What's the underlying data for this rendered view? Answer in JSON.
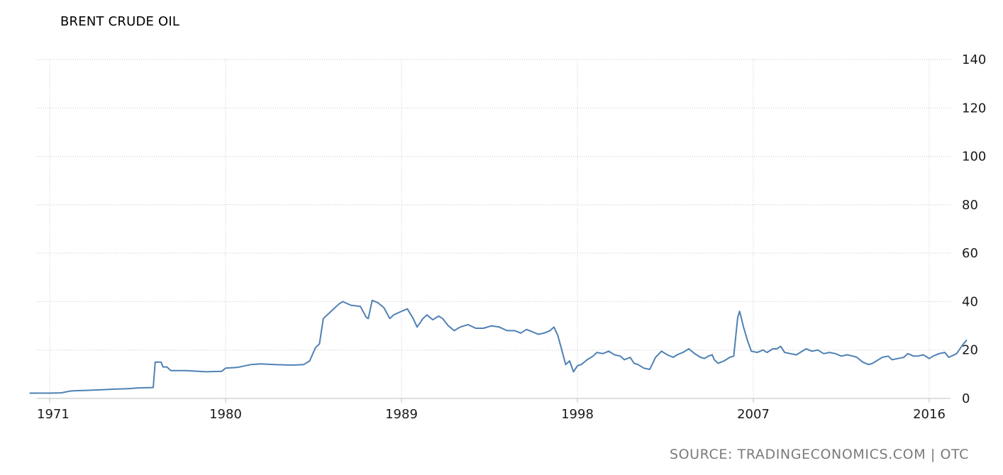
{
  "chart_data": {
    "type": "line",
    "title": "BRENT CRUDE OIL",
    "xlabel": "",
    "ylabel": "",
    "ylim": [
      0,
      140
    ],
    "yticks": [
      0,
      20,
      40,
      60,
      80,
      100,
      120,
      140
    ],
    "xlim": [
      1970.0,
      2017.9
    ],
    "xticks": [
      1971,
      1980,
      1989,
      1998,
      2007,
      2016
    ],
    "grid": true,
    "series": [
      {
        "color": "#4f81b4",
        "points": [
          [
            1970.0,
            2.2
          ],
          [
            1971.0,
            2.2
          ],
          [
            1971.6,
            2.3
          ],
          [
            1972.0,
            3.0
          ],
          [
            1972.3,
            3.2
          ],
          [
            1972.8,
            3.3
          ],
          [
            1973.5,
            3.5
          ],
          [
            1974.2,
            3.8
          ],
          [
            1975.0,
            4.0
          ],
          [
            1975.5,
            4.3
          ],
          [
            1976.3,
            4.5
          ],
          [
            1976.4,
            15.0
          ],
          [
            1976.7,
            15.0
          ],
          [
            1976.8,
            13.0
          ],
          [
            1977.0,
            13.0
          ],
          [
            1977.2,
            11.5
          ],
          [
            1977.5,
            11.5
          ],
          [
            1978.0,
            11.5
          ],
          [
            1979.0,
            11.0
          ],
          [
            1979.8,
            11.2
          ],
          [
            1980.0,
            12.5
          ],
          [
            1980.6,
            12.8
          ],
          [
            1981.3,
            14.0
          ],
          [
            1981.8,
            14.3
          ],
          [
            1982.5,
            14.0
          ],
          [
            1983.2,
            13.8
          ],
          [
            1983.5,
            13.8
          ],
          [
            1984.0,
            14.0
          ],
          [
            1984.3,
            15.5
          ],
          [
            1984.6,
            21.0
          ],
          [
            1984.8,
            22.5
          ],
          [
            1985.0,
            33.0
          ],
          [
            1985.4,
            36.0
          ],
          [
            1985.8,
            39.0
          ],
          [
            1986.0,
            40.0
          ],
          [
            1986.4,
            38.5
          ],
          [
            1986.9,
            38.0
          ],
          [
            1987.2,
            33.5
          ],
          [
            1987.3,
            33.0
          ],
          [
            1987.5,
            40.5
          ],
          [
            1987.8,
            39.5
          ],
          [
            1988.1,
            37.5
          ],
          [
            1988.4,
            33.0
          ],
          [
            1988.6,
            34.5
          ],
          [
            1989.0,
            36.0
          ],
          [
            1989.3,
            37.0
          ],
          [
            1989.6,
            33.0
          ],
          [
            1989.8,
            29.5
          ],
          [
            1990.1,
            33.0
          ],
          [
            1990.3,
            34.5
          ],
          [
            1990.6,
            32.5
          ],
          [
            1990.9,
            34.0
          ],
          [
            1991.1,
            33.0
          ],
          [
            1991.4,
            30.0
          ],
          [
            1991.7,
            28.0
          ],
          [
            1992.0,
            29.5
          ],
          [
            1992.4,
            30.5
          ],
          [
            1992.8,
            29.0
          ],
          [
            1993.2,
            29.0
          ],
          [
            1993.6,
            30.0
          ],
          [
            1994.0,
            29.5
          ],
          [
            1994.4,
            28.0
          ],
          [
            1994.8,
            28.0
          ],
          [
            1995.1,
            27.0
          ],
          [
            1995.4,
            28.5
          ],
          [
            1995.7,
            27.5
          ],
          [
            1996.0,
            26.5
          ],
          [
            1996.3,
            27.0
          ],
          [
            1996.6,
            28.0
          ],
          [
            1996.8,
            29.5
          ],
          [
            1997.0,
            26.0
          ],
          [
            1997.2,
            20.0
          ],
          [
            1997.4,
            14.0
          ],
          [
            1997.6,
            15.5
          ],
          [
            1997.8,
            11.0
          ],
          [
            1998.0,
            13.5
          ],
          [
            1998.2,
            14.0
          ],
          [
            1998.5,
            16.0
          ],
          [
            1998.8,
            17.5
          ],
          [
            1999.0,
            19.0
          ],
          [
            1999.3,
            18.5
          ],
          [
            1999.6,
            19.5
          ],
          [
            1999.9,
            18.0
          ],
          [
            2000.2,
            17.5
          ],
          [
            2000.4,
            16.0
          ],
          [
            2000.7,
            17.0
          ],
          [
            2000.9,
            14.5
          ],
          [
            2001.1,
            14.0
          ],
          [
            2001.4,
            12.5
          ],
          [
            2001.7,
            12.0
          ],
          [
            2002.0,
            17.0
          ],
          [
            2002.3,
            19.5
          ],
          [
            2002.6,
            18.0
          ],
          [
            2002.9,
            17.0
          ],
          [
            2003.1,
            18.0
          ],
          [
            2003.4,
            19.0
          ],
          [
            2003.7,
            20.5
          ],
          [
            2004.0,
            18.5
          ],
          [
            2004.3,
            17.0
          ],
          [
            2004.5,
            16.5
          ],
          [
            2004.7,
            17.5
          ],
          [
            2004.9,
            18.0
          ],
          [
            2005.0,
            16.0
          ],
          [
            2005.2,
            14.5
          ],
          [
            2005.5,
            15.5
          ],
          [
            2005.8,
            17.0
          ],
          [
            2006.0,
            17.5
          ],
          [
            2006.2,
            33.5
          ],
          [
            2006.3,
            36.0
          ],
          [
            2006.5,
            29.5
          ],
          [
            2006.7,
            24.0
          ],
          [
            2006.9,
            19.5
          ],
          [
            2007.2,
            19.0
          ],
          [
            2007.5,
            20.0
          ],
          [
            2007.7,
            19.0
          ],
          [
            2008.0,
            20.5
          ],
          [
            2008.2,
            20.5
          ],
          [
            2008.4,
            21.5
          ],
          [
            2008.6,
            19.0
          ],
          [
            2008.9,
            18.5
          ],
          [
            2009.2,
            18.0
          ],
          [
            2009.4,
            19.0
          ],
          [
            2009.7,
            20.5
          ],
          [
            2010.0,
            19.5
          ],
          [
            2010.3,
            20.0
          ],
          [
            2010.6,
            18.5
          ],
          [
            2010.9,
            19.0
          ],
          [
            2011.2,
            18.5
          ],
          [
            2011.5,
            17.5
          ],
          [
            2011.8,
            18.0
          ],
          [
            2012.1,
            17.5
          ],
          [
            2012.3,
            17.0
          ],
          [
            2012.6,
            15.0
          ],
          [
            2012.9,
            14.0
          ],
          [
            2013.1,
            14.5
          ],
          [
            2013.3,
            15.5
          ],
          [
            2013.6,
            17.0
          ],
          [
            2013.9,
            17.5
          ],
          [
            2014.1,
            16.0
          ],
          [
            2014.4,
            16.5
          ],
          [
            2014.7,
            17.0
          ],
          [
            2014.9,
            18.5
          ],
          [
            2015.2,
            17.5
          ],
          [
            2015.4,
            17.5
          ],
          [
            2015.7,
            18.0
          ],
          [
            2016.0,
            16.5
          ],
          [
            2016.2,
            17.5
          ],
          [
            2016.5,
            18.5
          ],
          [
            2016.8,
            19.0
          ],
          [
            2017.0,
            17.0
          ],
          [
            2017.4,
            18.5
          ],
          [
            2017.7,
            22.0
          ],
          [
            2017.9,
            24.0
          ]
        ]
      }
    ]
  },
  "source": "SOURCE: TRADINGECONOMICS.COM | OTC"
}
